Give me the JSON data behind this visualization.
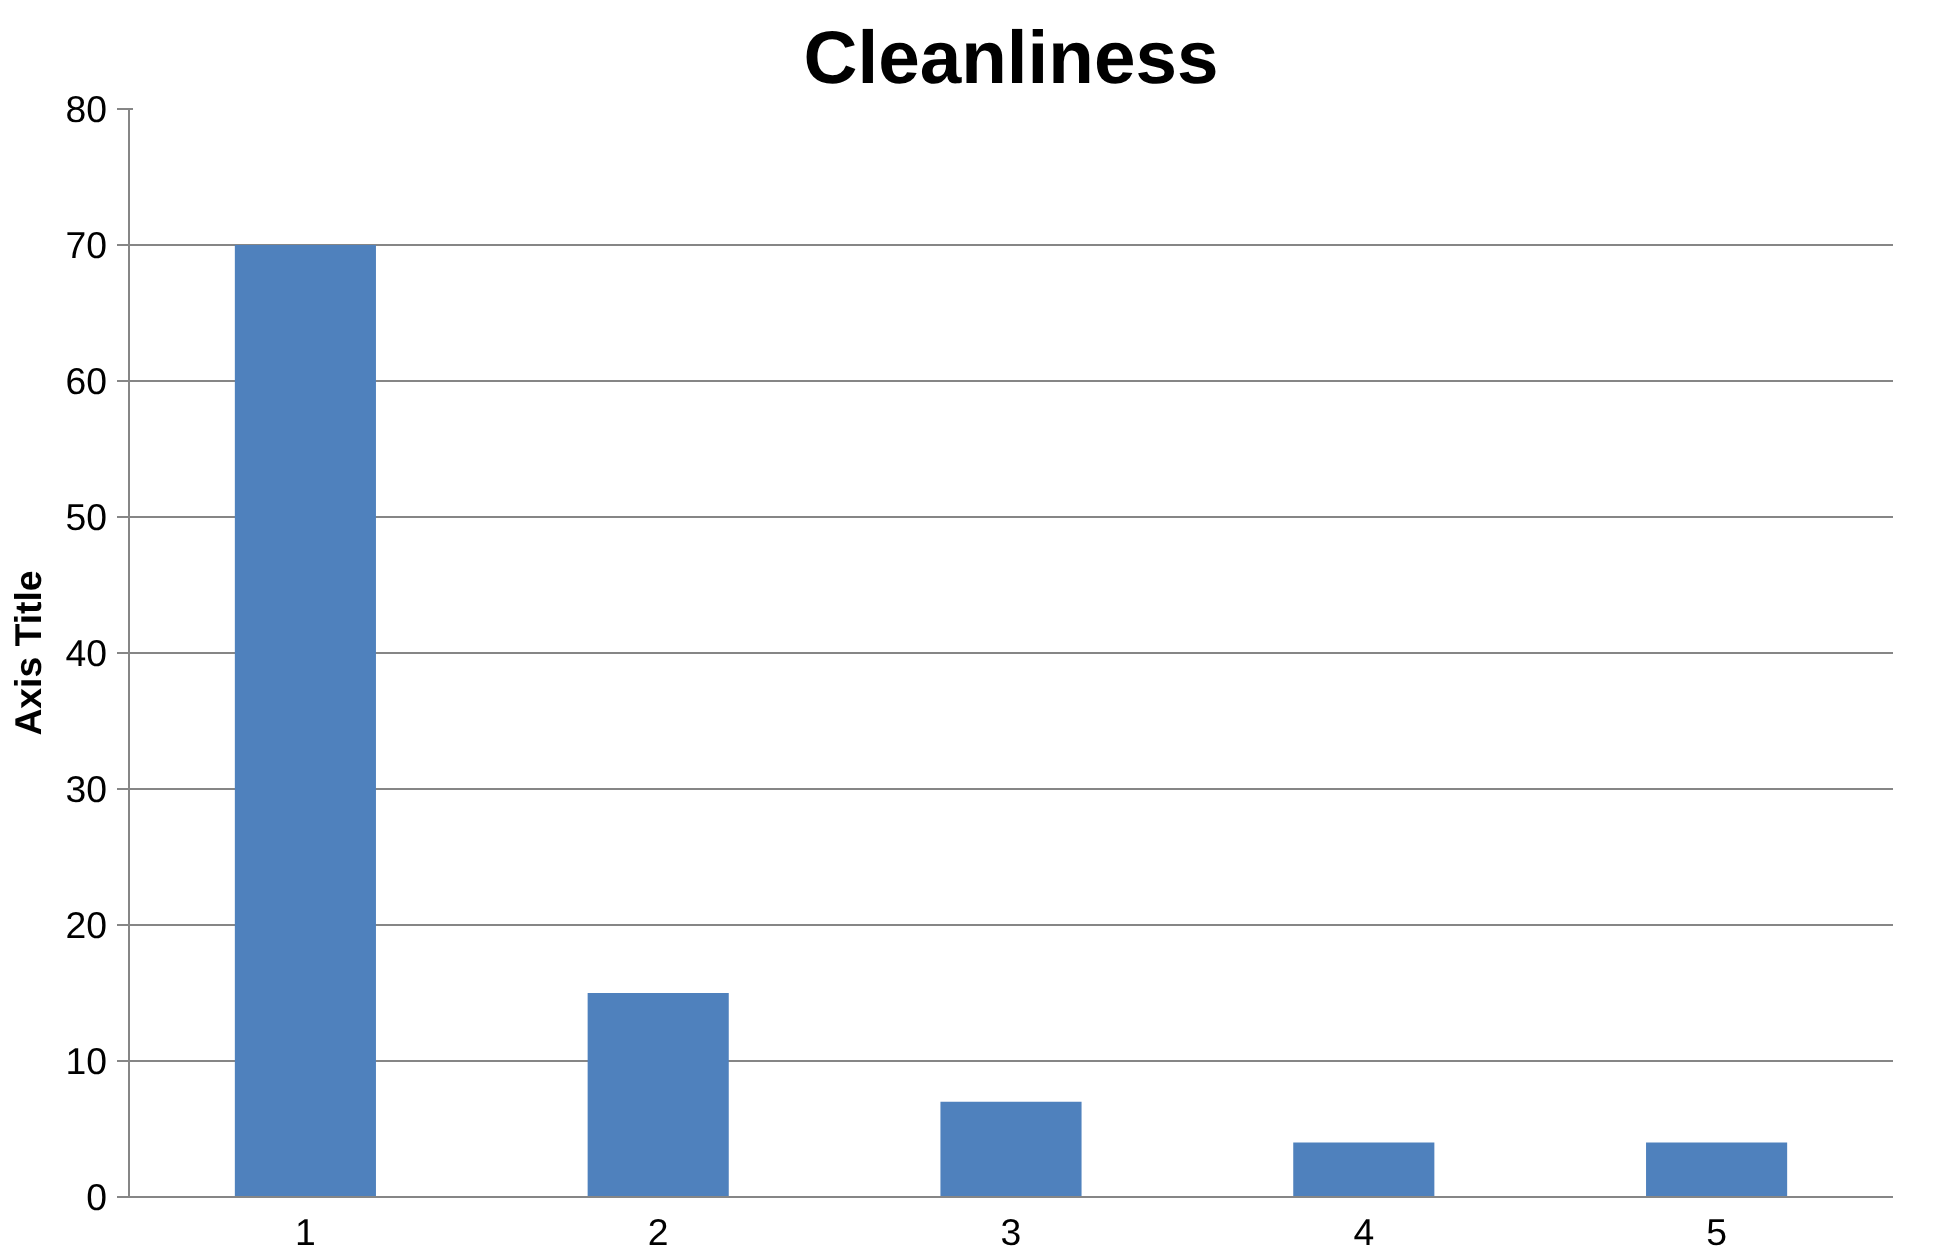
{
  "chart_data": {
    "type": "bar",
    "title": "Cleanliness",
    "ylabel": "Axis Title",
    "categories": [
      "1",
      "2",
      "3",
      "4",
      "5"
    ],
    "values": [
      70,
      15,
      7,
      4,
      4
    ],
    "color": "#4f81bd",
    "ylim": [
      0,
      80
    ],
    "yticks": [
      0,
      10,
      20,
      30,
      40,
      50,
      60,
      70,
      80
    ],
    "grid": "y"
  }
}
